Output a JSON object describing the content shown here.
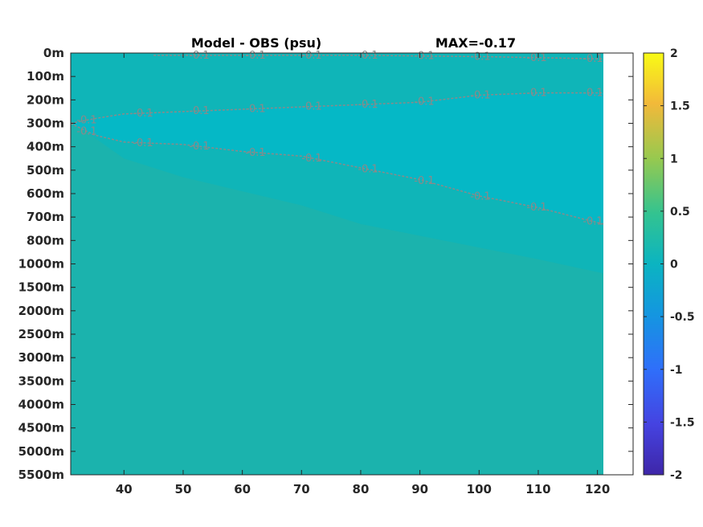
{
  "chart_data": {
    "type": "heatmap",
    "title": "Model - OBS (psu)",
    "max_label": "MAX=-0.17",
    "x_ticks": [
      40,
      50,
      60,
      70,
      80,
      90,
      100,
      110,
      120
    ],
    "x_range": [
      31,
      121
    ],
    "y_tick_labels": [
      "0m",
      "100m",
      "200m",
      "300m",
      "400m",
      "500m",
      "600m",
      "700m",
      "800m",
      "1000m",
      "1500m",
      "2000m",
      "2500m",
      "3000m",
      "3500m",
      "4000m",
      "4500m",
      "5000m",
      "5500m"
    ],
    "colorbar": {
      "min": -2,
      "max": 2,
      "tick_labels": [
        "2",
        "1.5",
        "1",
        "0.5",
        "0",
        "-0.5",
        "-1",
        "-1.5",
        "-2"
      ],
      "colormap": "parula"
    },
    "field_colors": {
      "background": "#1bb3ad",
      "near_zero_negative": "#0fb5b8",
      "negative_band": "#04b8c8",
      "contour_line": "#8a8a8a"
    },
    "contour_level_label": "-0.1",
    "contours": [
      {
        "label": "-0.1",
        "depth_index_path": [
          [
            31,
            3.0
          ],
          [
            35,
            2.8
          ],
          [
            40,
            2.6
          ],
          [
            50,
            2.5
          ],
          [
            60,
            2.4
          ],
          [
            70,
            2.3
          ],
          [
            80,
            2.2
          ],
          [
            90,
            2.1
          ],
          [
            100,
            1.8
          ],
          [
            110,
            1.7
          ],
          [
            121,
            1.7
          ]
        ]
      },
      {
        "label": "-0.1",
        "depth_index_path": [
          [
            31,
            3.0
          ],
          [
            35,
            3.5
          ],
          [
            40,
            3.8
          ],
          [
            50,
            3.9
          ],
          [
            60,
            4.2
          ],
          [
            70,
            4.4
          ],
          [
            80,
            4.9
          ],
          [
            90,
            5.4
          ],
          [
            100,
            6.1
          ],
          [
            110,
            6.6
          ],
          [
            121,
            7.3
          ]
        ]
      },
      {
        "label": "-0.1",
        "depth_index_path": [
          [
            45,
            0.1
          ],
          [
            60,
            0.1
          ],
          [
            80,
            0.1
          ],
          [
            100,
            0.15
          ],
          [
            110,
            0.2
          ],
          [
            121,
            0.25
          ]
        ]
      }
    ],
    "negative_region_outline": [
      [
        31,
        2.9
      ],
      [
        40,
        4.5
      ],
      [
        50,
        5.3
      ],
      [
        60,
        5.9
      ],
      [
        70,
        6.5
      ],
      [
        80,
        7.3
      ],
      [
        90,
        7.8
      ],
      [
        100,
        8.3
      ],
      [
        110,
        8.8
      ],
      [
        121,
        9.4
      ]
    ]
  }
}
